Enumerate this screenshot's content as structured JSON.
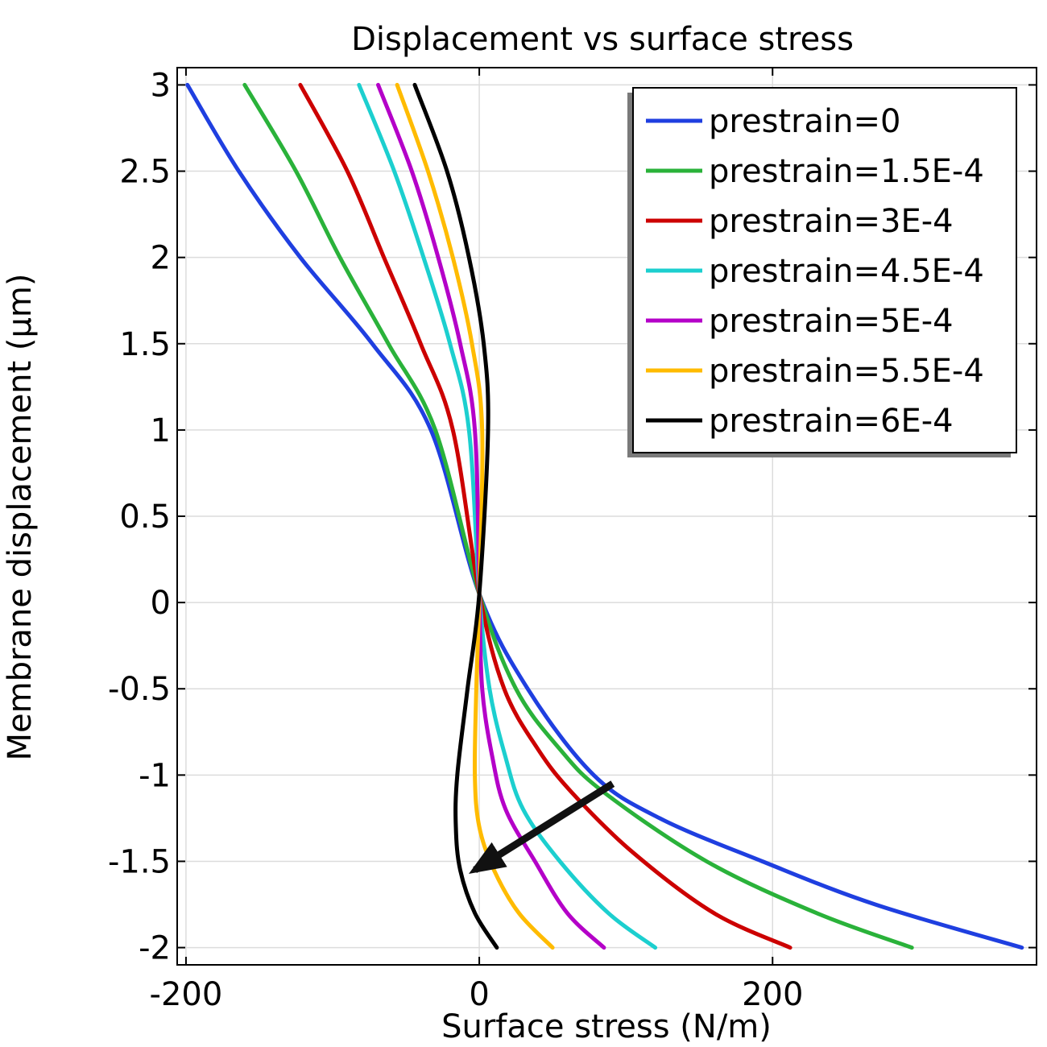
{
  "chart_data": {
    "type": "line",
    "title": "Displacement vs surface stress",
    "xlabel": "Surface stress (N/m)",
    "ylabel": "Membrane displacement (µm)",
    "xlim": [
      -206,
      380
    ],
    "ylim": [
      -2.1,
      3.1
    ],
    "xticks": [
      -200,
      0,
      200
    ],
    "xtick_labels": [
      "-200",
      "0",
      "200"
    ],
    "yticks": [
      -2,
      -1.5,
      -1,
      -0.5,
      0,
      0.5,
      1,
      1.5,
      2,
      2.5,
      3
    ],
    "ytick_labels": [
      "-2",
      "-1.5",
      "-1",
      "-0.5",
      "0",
      "0.5",
      "1",
      "1.5",
      "2",
      "2.5",
      "3"
    ],
    "grid": true,
    "legend_position": "top-right",
    "series": [
      {
        "name": "prestrain=0",
        "color": "#1f3fe0",
        "x": [
          -199,
          -164,
          -122,
          -73,
          -33,
          0,
          33,
          78,
          123,
          193,
          270,
          370
        ],
        "y": [
          3,
          2.5,
          2,
          1.5,
          1,
          0.05,
          -0.5,
          -1,
          -1.25,
          -1.5,
          -1.75,
          -2
        ]
      },
      {
        "name": "prestrain=1.5E-4",
        "color": "#2ab23a",
        "x": [
          -160,
          -125,
          -95,
          -62,
          -30,
          0,
          25,
          55,
          85,
          155,
          230,
          295
        ],
        "y": [
          3,
          2.5,
          2,
          1.5,
          1,
          0.05,
          -0.5,
          -0.85,
          -1.1,
          -1.5,
          -1.8,
          -2
        ]
      },
      {
        "name": "prestrain=3E-4",
        "color": "#cc0000",
        "x": [
          -122,
          -90,
          -65,
          -40,
          -18,
          0,
          17,
          40,
          63,
          105,
          160,
          212
        ],
        "y": [
          3,
          2.5,
          2,
          1.5,
          1,
          0.05,
          -0.5,
          -0.85,
          -1.1,
          -1.45,
          -1.8,
          -2
        ]
      },
      {
        "name": "prestrain=4.5E-4",
        "color": "#1ccfcf",
        "x": [
          -82,
          -58,
          -38,
          -20,
          -7,
          0,
          7,
          18,
          30,
          55,
          88,
          120
        ],
        "y": [
          3,
          2.5,
          2,
          1.5,
          1,
          0.05,
          -0.5,
          -0.9,
          -1.2,
          -1.5,
          -1.8,
          -2
        ]
      },
      {
        "name": "prestrain=5E-4",
        "color": "#b400c8",
        "x": [
          -69,
          -46,
          -28,
          -13,
          -3,
          0,
          2,
          9,
          18,
          38,
          60,
          85
        ],
        "y": [
          3,
          2.5,
          2,
          1.5,
          1,
          0.05,
          -0.5,
          -0.9,
          -1.2,
          -1.5,
          -1.8,
          -2
        ]
      },
      {
        "name": "prestrain=5.5E-4",
        "color": "#ffbb00",
        "x": [
          -56,
          -35,
          -18,
          -5,
          2,
          0,
          -2,
          -3,
          0,
          10,
          27,
          50
        ],
        "y": [
          3,
          2.5,
          2,
          1.5,
          1,
          0.05,
          -0.5,
          -1,
          -1.3,
          -1.55,
          -1.8,
          -2
        ]
      },
      {
        "name": "prestrain=6E-4",
        "color": "#000000",
        "x": [
          -44,
          -22,
          -7,
          3,
          6,
          0,
          -8,
          -15,
          -16,
          -13,
          -3,
          12
        ],
        "y": [
          3,
          2.5,
          2,
          1.5,
          1,
          0.05,
          -0.5,
          -1,
          -1.3,
          -1.55,
          -1.8,
          -2
        ]
      }
    ],
    "annotation_arrow": {
      "from": [
        91,
        -1.05
      ],
      "to": [
        -3,
        -1.55
      ],
      "color": "#111111"
    }
  }
}
